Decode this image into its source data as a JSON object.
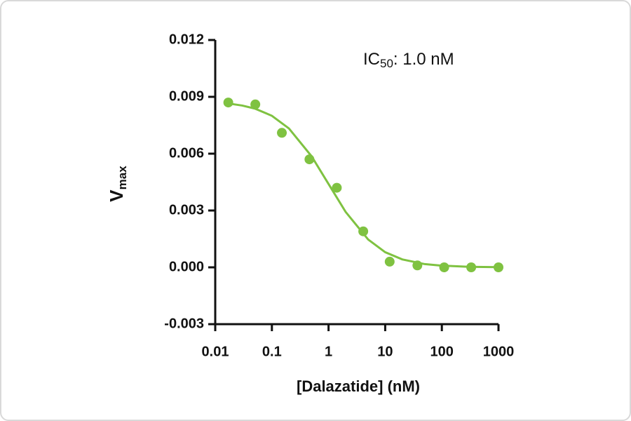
{
  "chart_data": {
    "type": "scatter",
    "xlabel": "[Dalazatide] (nM)",
    "ylabel": {
      "main": "V",
      "subscript": "max"
    },
    "annotation": {
      "prefix": "IC",
      "subscript": "50",
      "suffix": ": 1.0 nM"
    },
    "x": [
      0.017,
      0.051,
      0.15,
      0.46,
      1.4,
      4.1,
      12,
      37,
      110,
      330,
      1000
    ],
    "values": [
      0.0087,
      0.0086,
      0.0071,
      0.0057,
      0.0042,
      0.0019,
      0.0003,
      0.0001,
      0.0,
      -0.0,
      0.0
    ],
    "fit": {
      "x": [
        0.017,
        0.03,
        0.05,
        0.1,
        0.2,
        0.5,
        1,
        2,
        5,
        10,
        20,
        50,
        100,
        300,
        1000
      ],
      "values": [
        0.00865,
        0.00854,
        0.00838,
        0.008,
        0.00733,
        0.00587,
        0.0044,
        0.00293,
        0.00147,
        0.0008,
        0.00042,
        0.00017,
        9e-05,
        3e-05,
        1e-05
      ]
    },
    "color": "#7fc241",
    "xscale": "log",
    "xlim": [
      0.01,
      1000
    ],
    "xticks": [
      0.01,
      0.1,
      1,
      10,
      100,
      1000
    ],
    "ylim": [
      -0.003,
      0.012
    ],
    "yticks": [
      -0.003,
      {
        "value": 0,
        "label": "0.000"
      },
      0.003,
      0.006,
      0.009,
      0.012
    ],
    "grid": false
  }
}
